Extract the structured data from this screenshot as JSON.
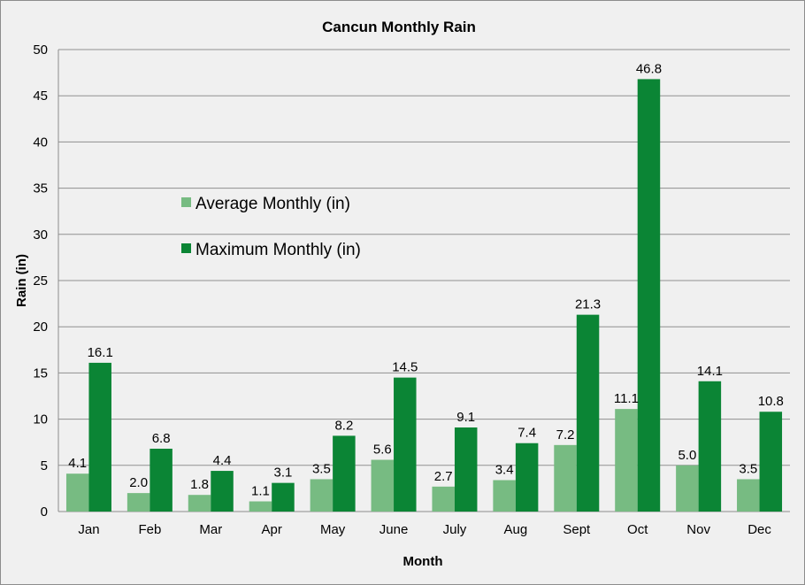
{
  "chart_data": {
    "type": "bar",
    "title": "Cancun Monthly Rain",
    "xlabel": "Month",
    "ylabel": "Rain (in)",
    "ylim": [
      0,
      50
    ],
    "yticks": [
      0,
      5,
      10,
      15,
      20,
      25,
      30,
      35,
      40,
      45,
      50
    ],
    "grid": true,
    "legend_position": "left-middle",
    "categories": [
      "Jan",
      "Feb",
      "Mar",
      "Apr",
      "May",
      "June",
      "July",
      "Aug",
      "Sept",
      "Oct",
      "Nov",
      "Dec"
    ],
    "series": [
      {
        "name": "Average Monthly (in)",
        "color": "#77bb82",
        "values": [
          4.1,
          2.0,
          1.8,
          1.1,
          3.5,
          5.6,
          2.7,
          3.4,
          7.2,
          11.1,
          5.0,
          3.5
        ],
        "labels": [
          "4.1",
          "2.0",
          "1.8",
          "1.1",
          "3.5",
          "5.6",
          "2.7",
          "3.4",
          "7.2",
          "11.1",
          "5.0",
          "3.5"
        ]
      },
      {
        "name": "Maximum Monthly (in)",
        "color": "#0b8535",
        "values": [
          16.1,
          6.8,
          4.4,
          3.1,
          8.2,
          14.5,
          9.1,
          7.4,
          21.3,
          46.8,
          14.1,
          10.8
        ],
        "labels": [
          "16.1",
          "6.8",
          "4.4",
          "3.1",
          "8.2",
          "14.5",
          "9.1",
          "7.4",
          "21.3",
          "46.8",
          "14.1",
          "10.8"
        ]
      }
    ]
  }
}
